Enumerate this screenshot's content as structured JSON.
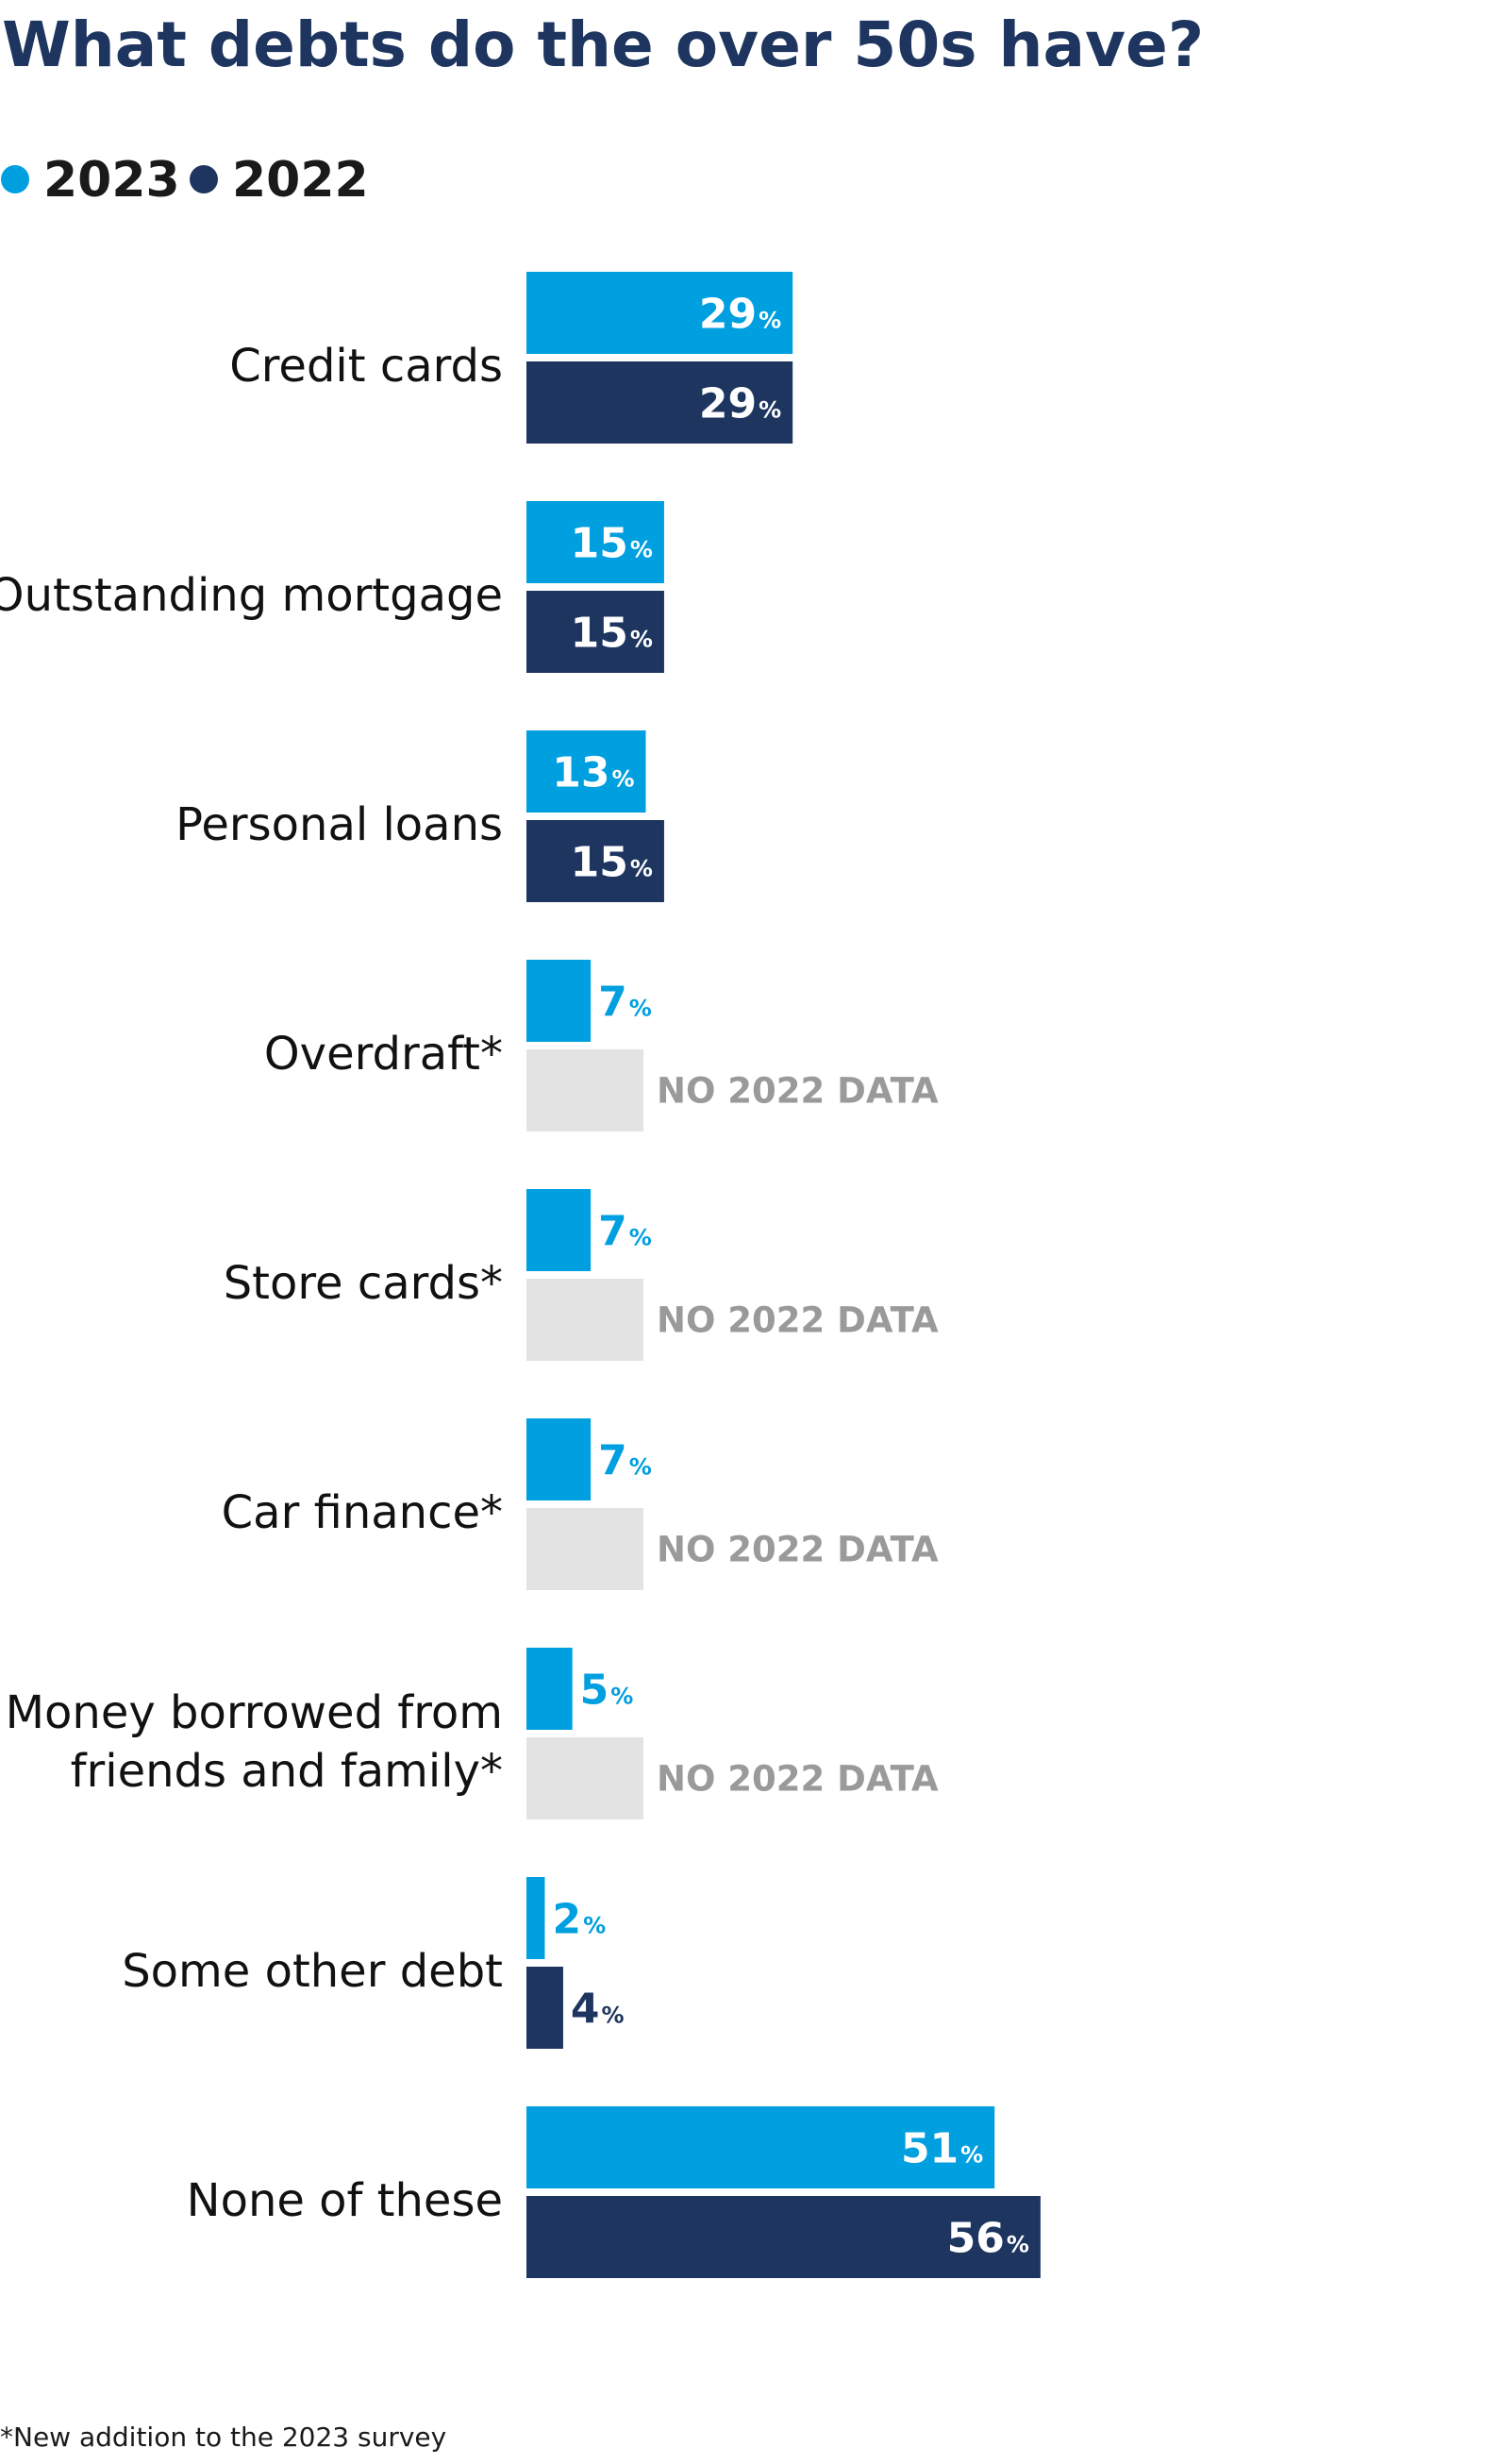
{
  "chart_data": {
    "type": "bar",
    "orientation": "horizontal",
    "title": "What debts do the over 50s have?",
    "categories": [
      [
        "Credit cards"
      ],
      [
        "Outstanding mortgage"
      ],
      [
        "Personal loans"
      ],
      [
        "Overdraft*"
      ],
      [
        "Store cards*"
      ],
      [
        "Car finance*"
      ],
      [
        "Money borrowed from",
        "friends and family*"
      ],
      [
        "Some other debt"
      ],
      [
        "None of these"
      ]
    ],
    "series": [
      {
        "name": "2023",
        "color": "#009fdf",
        "values": [
          29,
          15,
          13,
          7,
          7,
          7,
          5,
          2,
          51
        ]
      },
      {
        "name": "2022",
        "color": "#1e3560",
        "values": [
          29,
          15,
          15,
          null,
          null,
          null,
          null,
          4,
          56
        ]
      }
    ],
    "value_suffix": "%",
    "no_data_label": "NO 2022 DATA",
    "no_data_color": "#e3e3e3",
    "legend_position": "top-left",
    "grid": false,
    "footnote": "*New addition to the 2023 survey"
  }
}
